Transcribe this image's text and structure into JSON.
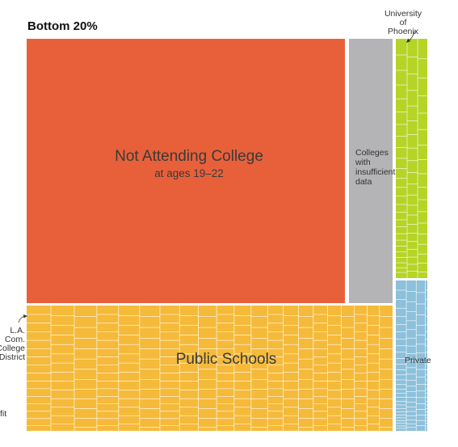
{
  "chart_data": {
    "type": "treemap",
    "title": "Bottom 20%",
    "colors": {
      "not_attending": "#E8603A",
      "insufficient": "#B4B3B5",
      "public": "#F5BA3A",
      "for_profit": "#B5D426",
      "private": "#8DC0DA",
      "cell_line": "#ffffff"
    },
    "groups": [
      {
        "id": "not_attending",
        "label": "Not Attending College",
        "sublabel": "at ages 19–22"
      },
      {
        "id": "insufficient",
        "label_lines": [
          "Colleges",
          "with",
          "insufficient",
          "data"
        ]
      },
      {
        "id": "public",
        "label": "Public Schools"
      },
      {
        "id": "for_profit",
        "label": ""
      },
      {
        "id": "private",
        "label": "Private"
      }
    ],
    "annotations": [
      {
        "target": "for_profit",
        "lines": [
          "University",
          "of",
          "Phoenix"
        ]
      },
      {
        "target": "public",
        "lines": [
          "L.A.",
          "Com.",
          "College",
          "District"
        ]
      },
      {
        "target": "for_profit",
        "lines": [
          "fit"
        ]
      }
    ]
  }
}
